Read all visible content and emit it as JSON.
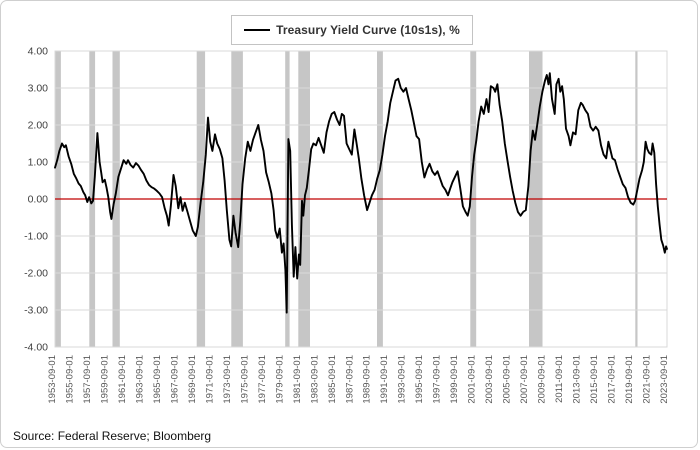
{
  "legend": {
    "label": "Treasury Yield Curve (10s1s), %"
  },
  "source": "Source: Federal Reserve; Bloomberg",
  "chart_data": {
    "type": "line",
    "title": "Treasury Yield Curve (10s1s), %",
    "xlabel": "",
    "ylabel": "",
    "ylim": [
      -4,
      4
    ],
    "y_tick_labels": [
      "4.00",
      "3.00",
      "2.00",
      "1.00",
      "0.00",
      "-1.00",
      "-2.00",
      "-3.00",
      "-4.00"
    ],
    "y_tick_values": [
      4,
      3,
      2,
      1,
      0,
      -1,
      -2,
      -3,
      -4
    ],
    "x_range": [
      1953.75,
      2023.75
    ],
    "x_tick_step_years": 2,
    "x_tick_labels": [
      "1953-09-01",
      "1955-09-01",
      "1957-09-01",
      "1959-09-01",
      "1961-09-01",
      "1963-09-01",
      "1965-09-01",
      "1967-09-01",
      "1969-09-01",
      "1971-09-01",
      "1973-09-01",
      "1975-09-01",
      "1977-09-01",
      "1979-09-01",
      "1981-09-01",
      "1983-09-01",
      "1985-09-01",
      "1987-09-01",
      "1989-09-01",
      "1991-09-01",
      "1993-09-01",
      "1995-09-01",
      "1997-09-01",
      "1999-09-01",
      "2001-09-01",
      "2003-09-01",
      "2005-09-01",
      "2007-09-01",
      "2009-09-01",
      "2011-09-01",
      "2013-09-01",
      "2015-09-01",
      "2017-09-01",
      "2019-09-01",
      "2021-09-01",
      "2023-09-01"
    ],
    "grid": "horizontal",
    "legend_position": "top-center",
    "colors": {
      "series": "#000000",
      "zero_line": "#C00000",
      "recession_band": "#c6c6c6",
      "gridline": "#d9d9d9",
      "plot_border": "#d9d9d9",
      "y_tick_text": "#404040",
      "x_tick_text": "#595959"
    },
    "recession_bands": [
      [
        1953.75,
        1954.42
      ],
      [
        1957.67,
        1958.33
      ],
      [
        1960.33,
        1961.17
      ],
      [
        1969.96,
        1970.92
      ],
      [
        1973.92,
        1975.25
      ],
      [
        1980.08,
        1980.58
      ],
      [
        1981.58,
        1982.92
      ],
      [
        1990.58,
        1991.25
      ],
      [
        2001.25,
        2001.92
      ],
      [
        2007.96,
        2009.5
      ],
      [
        2020.12,
        2020.37
      ]
    ],
    "series": [
      {
        "name": "Treasury Yield Curve (10s1s), %",
        "color": "#000000",
        "points": [
          [
            1953.75,
            0.85
          ],
          [
            1954.0,
            1.05
          ],
          [
            1954.25,
            1.3
          ],
          [
            1954.55,
            1.5
          ],
          [
            1954.8,
            1.4
          ],
          [
            1955.0,
            1.45
          ],
          [
            1955.3,
            1.15
          ],
          [
            1955.6,
            0.95
          ],
          [
            1955.9,
            0.68
          ],
          [
            1956.15,
            0.57
          ],
          [
            1956.45,
            0.42
          ],
          [
            1956.7,
            0.35
          ],
          [
            1957.0,
            0.18
          ],
          [
            1957.2,
            0.1
          ],
          [
            1957.45,
            -0.08
          ],
          [
            1957.65,
            0.05
          ],
          [
            1957.9,
            -0.12
          ],
          [
            1958.1,
            -0.05
          ],
          [
            1958.3,
            0.6
          ],
          [
            1958.6,
            1.78
          ],
          [
            1958.85,
            1.0
          ],
          [
            1959.05,
            0.7
          ],
          [
            1959.2,
            0.45
          ],
          [
            1959.45,
            0.52
          ],
          [
            1959.65,
            0.3
          ],
          [
            1959.85,
            0.05
          ],
          [
            1960.05,
            -0.35
          ],
          [
            1960.2,
            -0.54
          ],
          [
            1960.45,
            -0.14
          ],
          [
            1960.7,
            0.15
          ],
          [
            1961.0,
            0.6
          ],
          [
            1961.4,
            0.9
          ],
          [
            1961.6,
            1.05
          ],
          [
            1961.9,
            0.95
          ],
          [
            1962.1,
            1.05
          ],
          [
            1962.4,
            0.92
          ],
          [
            1962.7,
            0.85
          ],
          [
            1963.0,
            0.97
          ],
          [
            1963.3,
            0.9
          ],
          [
            1963.6,
            0.78
          ],
          [
            1963.9,
            0.68
          ],
          [
            1964.2,
            0.5
          ],
          [
            1964.5,
            0.38
          ],
          [
            1964.8,
            0.32
          ],
          [
            1965.1,
            0.28
          ],
          [
            1965.4,
            0.22
          ],
          [
            1965.7,
            0.15
          ],
          [
            1966.0,
            0.05
          ],
          [
            1966.3,
            -0.25
          ],
          [
            1966.55,
            -0.45
          ],
          [
            1966.75,
            -0.72
          ],
          [
            1967.0,
            -0.2
          ],
          [
            1967.3,
            0.65
          ],
          [
            1967.55,
            0.35
          ],
          [
            1967.85,
            -0.25
          ],
          [
            1968.1,
            0.05
          ],
          [
            1968.35,
            -0.32
          ],
          [
            1968.6,
            -0.1
          ],
          [
            1968.9,
            -0.35
          ],
          [
            1969.2,
            -0.6
          ],
          [
            1969.5,
            -0.85
          ],
          [
            1969.85,
            -1.0
          ],
          [
            1970.1,
            -0.75
          ],
          [
            1970.4,
            -0.1
          ],
          [
            1970.7,
            0.45
          ],
          [
            1971.0,
            1.2
          ],
          [
            1971.25,
            2.2
          ],
          [
            1971.5,
            1.55
          ],
          [
            1971.75,
            1.3
          ],
          [
            1972.05,
            1.75
          ],
          [
            1972.3,
            1.5
          ],
          [
            1972.6,
            1.35
          ],
          [
            1972.9,
            1.1
          ],
          [
            1973.15,
            0.5
          ],
          [
            1973.4,
            -0.3
          ],
          [
            1973.7,
            -1.1
          ],
          [
            1973.9,
            -1.28
          ],
          [
            1974.15,
            -0.45
          ],
          [
            1974.4,
            -0.9
          ],
          [
            1974.7,
            -1.3
          ],
          [
            1974.95,
            -0.6
          ],
          [
            1975.2,
            0.4
          ],
          [
            1975.5,
            1.1
          ],
          [
            1975.8,
            1.55
          ],
          [
            1976.1,
            1.3
          ],
          [
            1976.4,
            1.6
          ],
          [
            1976.7,
            1.8
          ],
          [
            1977.0,
            2.0
          ],
          [
            1977.3,
            1.6
          ],
          [
            1977.6,
            1.3
          ],
          [
            1977.9,
            0.72
          ],
          [
            1978.2,
            0.45
          ],
          [
            1978.5,
            0.15
          ],
          [
            1978.75,
            -0.3
          ],
          [
            1978.95,
            -0.85
          ],
          [
            1979.2,
            -1.05
          ],
          [
            1979.45,
            -0.8
          ],
          [
            1979.7,
            -1.45
          ],
          [
            1979.9,
            -1.2
          ],
          [
            1980.1,
            -1.92
          ],
          [
            1980.25,
            -3.07
          ],
          [
            1980.45,
            1.62
          ],
          [
            1980.65,
            1.3
          ],
          [
            1980.85,
            -0.7
          ],
          [
            1981.05,
            -2.1
          ],
          [
            1981.25,
            -1.3
          ],
          [
            1981.45,
            -2.15
          ],
          [
            1981.65,
            -1.5
          ],
          [
            1981.8,
            -1.78
          ],
          [
            1982.0,
            -0.05
          ],
          [
            1982.15,
            -0.45
          ],
          [
            1982.35,
            0.1
          ],
          [
            1982.55,
            0.3
          ],
          [
            1982.8,
            0.8
          ],
          [
            1983.05,
            1.35
          ],
          [
            1983.3,
            1.5
          ],
          [
            1983.6,
            1.45
          ],
          [
            1983.9,
            1.65
          ],
          [
            1984.2,
            1.45
          ],
          [
            1984.5,
            1.25
          ],
          [
            1984.8,
            1.8
          ],
          [
            1985.1,
            2.1
          ],
          [
            1985.4,
            2.3
          ],
          [
            1985.7,
            2.35
          ],
          [
            1986.0,
            2.15
          ],
          [
            1986.3,
            2.0
          ],
          [
            1986.55,
            2.3
          ],
          [
            1986.8,
            2.25
          ],
          [
            1987.1,
            1.5
          ],
          [
            1987.4,
            1.35
          ],
          [
            1987.7,
            1.2
          ],
          [
            1988.0,
            1.88
          ],
          [
            1988.25,
            1.5
          ],
          [
            1988.5,
            1.1
          ],
          [
            1988.8,
            0.55
          ],
          [
            1989.1,
            0.1
          ],
          [
            1989.45,
            -0.3
          ],
          [
            1989.7,
            -0.12
          ],
          [
            1990.0,
            0.1
          ],
          [
            1990.3,
            0.25
          ],
          [
            1990.6,
            0.55
          ],
          [
            1990.9,
            0.78
          ],
          [
            1991.2,
            1.2
          ],
          [
            1991.5,
            1.7
          ],
          [
            1991.8,
            2.1
          ],
          [
            1992.1,
            2.6
          ],
          [
            1992.4,
            2.9
          ],
          [
            1992.7,
            3.2
          ],
          [
            1993.0,
            3.25
          ],
          [
            1993.3,
            3.0
          ],
          [
            1993.6,
            2.9
          ],
          [
            1993.9,
            3.0
          ],
          [
            1994.2,
            2.7
          ],
          [
            1994.5,
            2.4
          ],
          [
            1994.85,
            2.0
          ],
          [
            1995.1,
            1.7
          ],
          [
            1995.4,
            1.62
          ],
          [
            1995.7,
            1.0
          ],
          [
            1996.0,
            0.58
          ],
          [
            1996.3,
            0.8
          ],
          [
            1996.6,
            0.95
          ],
          [
            1996.9,
            0.75
          ],
          [
            1997.2,
            0.65
          ],
          [
            1997.5,
            0.75
          ],
          [
            1997.8,
            0.55
          ],
          [
            1998.1,
            0.35
          ],
          [
            1998.4,
            0.25
          ],
          [
            1998.7,
            0.1
          ],
          [
            1998.95,
            0.28
          ],
          [
            1999.2,
            0.45
          ],
          [
            1999.5,
            0.6
          ],
          [
            1999.8,
            0.75
          ],
          [
            2000.1,
            0.3
          ],
          [
            2000.4,
            -0.2
          ],
          [
            2000.7,
            -0.35
          ],
          [
            2000.95,
            -0.45
          ],
          [
            2001.2,
            -0.2
          ],
          [
            2001.45,
            0.6
          ],
          [
            2001.7,
            1.2
          ],
          [
            2001.95,
            1.6
          ],
          [
            2002.2,
            2.1
          ],
          [
            2002.5,
            2.5
          ],
          [
            2002.8,
            2.3
          ],
          [
            2003.1,
            2.7
          ],
          [
            2003.35,
            2.35
          ],
          [
            2003.6,
            3.05
          ],
          [
            2003.9,
            3.0
          ],
          [
            2004.1,
            2.9
          ],
          [
            2004.35,
            3.1
          ],
          [
            2004.6,
            2.55
          ],
          [
            2004.9,
            2.1
          ],
          [
            2005.2,
            1.5
          ],
          [
            2005.5,
            1.05
          ],
          [
            2005.8,
            0.6
          ],
          [
            2006.1,
            0.22
          ],
          [
            2006.4,
            -0.1
          ],
          [
            2006.7,
            -0.35
          ],
          [
            2007.0,
            -0.45
          ],
          [
            2007.3,
            -0.35
          ],
          [
            2007.6,
            -0.3
          ],
          [
            2007.9,
            0.35
          ],
          [
            2008.15,
            1.3
          ],
          [
            2008.4,
            1.85
          ],
          [
            2008.65,
            1.6
          ],
          [
            2008.9,
            2.0
          ],
          [
            2009.2,
            2.5
          ],
          [
            2009.5,
            2.9
          ],
          [
            2009.8,
            3.2
          ],
          [
            2010.0,
            3.35
          ],
          [
            2010.2,
            3.1
          ],
          [
            2010.35,
            3.4
          ],
          [
            2010.6,
            2.7
          ],
          [
            2010.9,
            2.3
          ],
          [
            2011.1,
            3.1
          ],
          [
            2011.35,
            3.25
          ],
          [
            2011.55,
            2.9
          ],
          [
            2011.75,
            3.05
          ],
          [
            2011.95,
            2.7
          ],
          [
            2012.2,
            1.9
          ],
          [
            2012.5,
            1.7
          ],
          [
            2012.7,
            1.45
          ],
          [
            2013.0,
            1.8
          ],
          [
            2013.3,
            1.75
          ],
          [
            2013.6,
            2.4
          ],
          [
            2013.9,
            2.6
          ],
          [
            2014.1,
            2.55
          ],
          [
            2014.4,
            2.4
          ],
          [
            2014.7,
            2.3
          ],
          [
            2015.0,
            1.95
          ],
          [
            2015.3,
            1.85
          ],
          [
            2015.6,
            1.95
          ],
          [
            2015.9,
            1.85
          ],
          [
            2016.2,
            1.45
          ],
          [
            2016.5,
            1.2
          ],
          [
            2016.8,
            1.1
          ],
          [
            2017.05,
            1.55
          ],
          [
            2017.25,
            1.35
          ],
          [
            2017.5,
            1.1
          ],
          [
            2017.8,
            1.05
          ],
          [
            2018.1,
            0.8
          ],
          [
            2018.4,
            0.6
          ],
          [
            2018.7,
            0.4
          ],
          [
            2019.0,
            0.3
          ],
          [
            2019.3,
            0.05
          ],
          [
            2019.6,
            -0.1
          ],
          [
            2019.9,
            -0.15
          ],
          [
            2020.1,
            -0.05
          ],
          [
            2020.35,
            0.25
          ],
          [
            2020.6,
            0.55
          ],
          [
            2020.9,
            0.78
          ],
          [
            2021.1,
            1.0
          ],
          [
            2021.3,
            1.55
          ],
          [
            2021.5,
            1.35
          ],
          [
            2021.7,
            1.25
          ],
          [
            2021.95,
            1.2
          ],
          [
            2022.1,
            1.5
          ],
          [
            2022.3,
            1.25
          ],
          [
            2022.5,
            0.4
          ],
          [
            2022.7,
            -0.2
          ],
          [
            2022.9,
            -0.7
          ],
          [
            2023.1,
            -1.1
          ],
          [
            2023.3,
            -1.25
          ],
          [
            2023.5,
            -1.45
          ],
          [
            2023.65,
            -1.28
          ],
          [
            2023.75,
            -1.35
          ]
        ]
      }
    ]
  }
}
